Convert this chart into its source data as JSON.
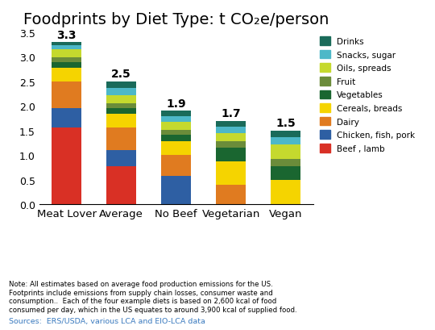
{
  "title": "Foodprints by Diet Type: t CO₂e/person",
  "categories": [
    "Meat Lover",
    "Average",
    "No Beef",
    "Vegetarian",
    "Vegan"
  ],
  "totals": [
    3.3,
    2.5,
    1.9,
    1.7,
    1.5
  ],
  "segments": {
    "Beef , lamb": [
      1.57,
      0.77,
      0.0,
      0.0,
      0.0
    ],
    "Chicken, fish, pork": [
      0.39,
      0.34,
      0.57,
      0.0,
      0.0
    ],
    "Dairy": [
      0.54,
      0.46,
      0.44,
      0.39,
      0.0
    ],
    "Cereals, breads": [
      0.27,
      0.27,
      0.27,
      0.48,
      0.5
    ],
    "Vegetables": [
      0.12,
      0.12,
      0.14,
      0.28,
      0.28
    ],
    "Fruit": [
      0.1,
      0.1,
      0.1,
      0.14,
      0.14
    ],
    "Oils, spreads": [
      0.16,
      0.16,
      0.16,
      0.16,
      0.3
    ],
    "Snacks, sugar": [
      0.09,
      0.15,
      0.12,
      0.13,
      0.14
    ],
    "Drinks": [
      0.06,
      0.13,
      0.1,
      0.12,
      0.14
    ]
  },
  "colors": {
    "Beef , lamb": "#d93025",
    "Chicken, fish, pork": "#2e5fa3",
    "Dairy": "#e07b20",
    "Cereals, breads": "#f5d400",
    "Vegetables": "#1a6630",
    "Fruit": "#6b8c3a",
    "Oils, spreads": "#c5d92e",
    "Snacks, sugar": "#4db8c8",
    "Drinks": "#1a6b5a"
  },
  "legend_order": [
    "Drinks",
    "Snacks, sugar",
    "Oils, spreads",
    "Fruit",
    "Vegetables",
    "Cereals, breads",
    "Dairy",
    "Chicken, fish, pork",
    "Beef , lamb"
  ],
  "stack_order": [
    "Beef , lamb",
    "Chicken, fish, pork",
    "Dairy",
    "Cereals, breads",
    "Vegetables",
    "Fruit",
    "Oils, spreads",
    "Snacks, sugar",
    "Drinks"
  ],
  "ylim": [
    0,
    3.5
  ],
  "yticks": [
    0.0,
    0.5,
    1.0,
    1.5,
    2.0,
    2.5,
    3.0,
    3.5
  ],
  "note_text": "Note: All estimates based on average food production emissions for the US.\nFootprints include emissions from supply chain losses, consumer waste and\nconsumption..  Each of the four example diets is based on 2,600 kcal of food\nconsumed per day, which in the US equates to around 3,900 kcal of supplied food.",
  "source_text": "Sources:  ERS/USDA, various LCA and EIO-LCA data",
  "background_color": "#ffffff",
  "bar_width": 0.55
}
